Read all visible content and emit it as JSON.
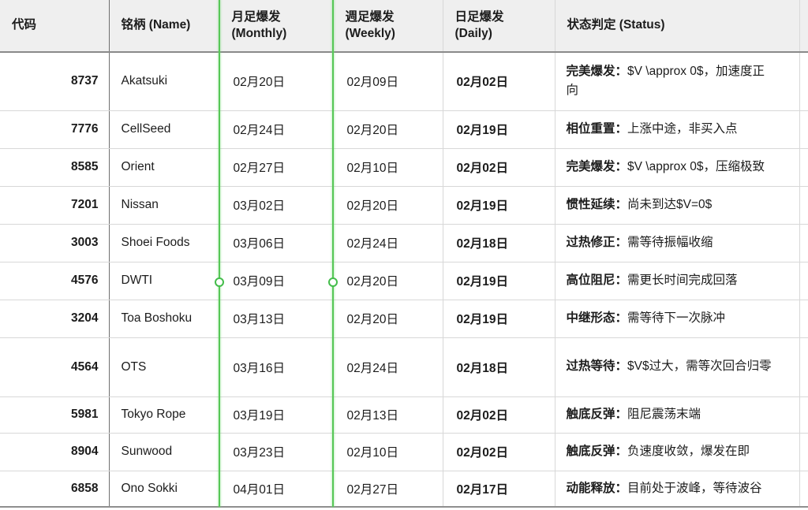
{
  "table": {
    "headers": {
      "code": "代码",
      "name": "铭柄 (Name)",
      "monthly_line1": "月足爆发",
      "monthly_line2": "(Monthly)",
      "weekly_line1": "週足爆发",
      "weekly_line2": "(Weekly)",
      "daily_line1": "日足爆发",
      "daily_line2": "(Daily)",
      "status": "状态判定 (Status)"
    },
    "rows": [
      {
        "code": "8737",
        "name": "Akatsuki",
        "monthly": "02月20日",
        "weekly": "02月09日",
        "daily": "02月02日",
        "status_label": "完美爆发：",
        "status_detail": "$V \\approx 0$，加速度正向"
      },
      {
        "code": "7776",
        "name": "CellSeed",
        "monthly": "02月24日",
        "weekly": "02月20日",
        "daily": "02月19日",
        "status_label": "相位重置：",
        "status_detail": "上涨中途，非买入点"
      },
      {
        "code": "8585",
        "name": "Orient",
        "monthly": "02月27日",
        "weekly": "02月10日",
        "daily": "02月02日",
        "status_label": "完美爆发：",
        "status_detail": "$V \\approx 0$，压缩极致"
      },
      {
        "code": "7201",
        "name": "Nissan",
        "monthly": "03月02日",
        "weekly": "02月20日",
        "daily": "02月19日",
        "status_label": "惯性延续：",
        "status_detail": "尚未到达$V=0$"
      },
      {
        "code": "3003",
        "name": "Shoei Foods",
        "monthly": "03月06日",
        "weekly": "02月24日",
        "daily": "02月18日",
        "status_label": "过热修正：",
        "status_detail": "需等待振幅收缩"
      },
      {
        "code": "4576",
        "name": "DWTI",
        "monthly": "03月09日",
        "weekly": "02月20日",
        "daily": "02月19日",
        "status_label": "高位阻尼：",
        "status_detail": "需更长时间完成回落"
      },
      {
        "code": "3204",
        "name": "Toa Boshoku",
        "monthly": "03月13日",
        "weekly": "02月20日",
        "daily": "02月19日",
        "status_label": "中继形态：",
        "status_detail": "需等待下一次脉冲"
      },
      {
        "code": "4564",
        "name": "OTS",
        "monthly": "03月16日",
        "weekly": "02月24日",
        "daily": "02月18日",
        "status_label": "过热等待：",
        "status_detail": "$V$过大，需等次回合归零"
      },
      {
        "code": "5981",
        "name": "Tokyo Rope",
        "monthly": "03月19日",
        "weekly": "02月13日",
        "daily": "02月02日",
        "status_label": "触底反弹：",
        "status_detail": "阻尼震荡末端"
      },
      {
        "code": "8904",
        "name": "Sunwood",
        "monthly": "03月23日",
        "weekly": "02月10日",
        "daily": "02月02日",
        "status_label": "触底反弹：",
        "status_detail": "负速度收敛，爆发在即"
      },
      {
        "code": "6858",
        "name": "Ono Sokki",
        "monthly": "04月01日",
        "weekly": "02月27日",
        "daily": "02月17日",
        "status_label": "动能释放：",
        "status_detail": "目前处于波峰，等待波谷"
      }
    ]
  },
  "colors": {
    "accent_green": "#57c757",
    "header_bg": "#efefef",
    "border_dark": "#8a8a8a",
    "border_light": "#d8d8d8",
    "text": "#1c1c1c"
  }
}
